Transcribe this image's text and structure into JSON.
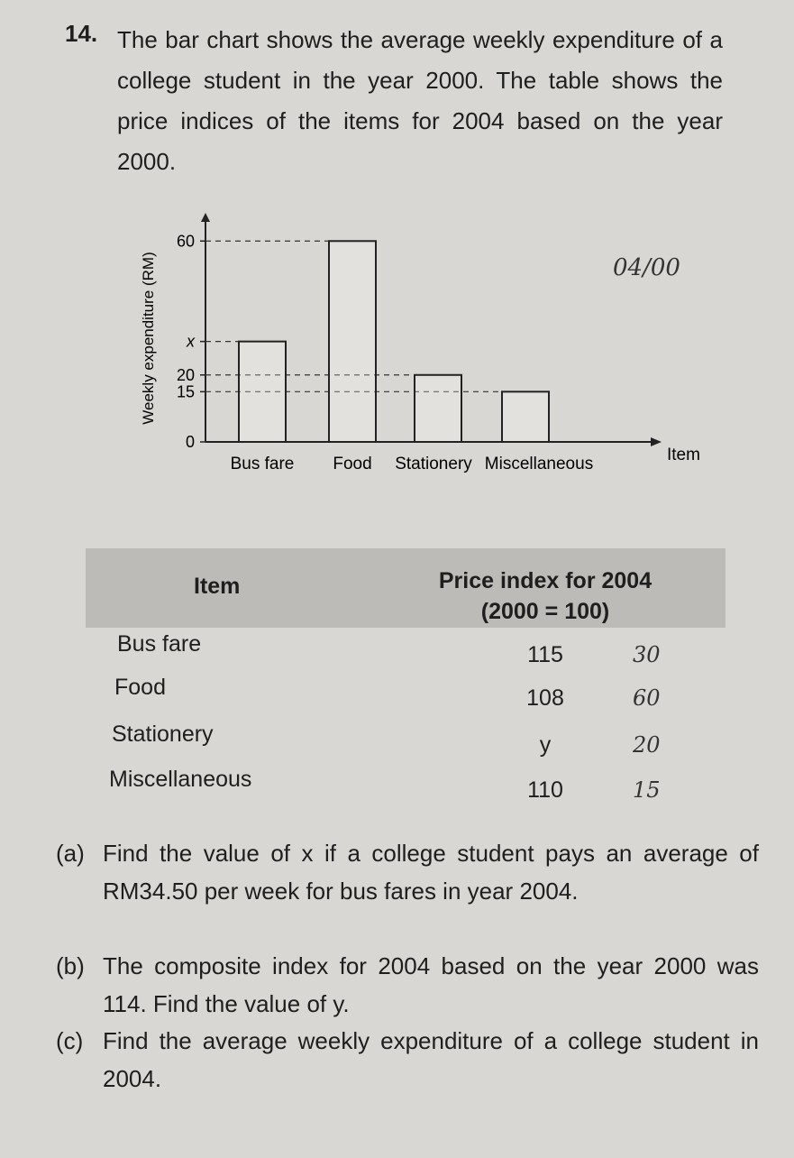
{
  "question": {
    "number": "14.",
    "text": "The bar chart shows the average weekly expenditure of a college student in the year 2000. The table shows the price indices of the items for 2004 based on the year 2000."
  },
  "chart_data": {
    "type": "bar",
    "ylabel": "Weekly expenditure (RM)",
    "xlabel": "Item",
    "categories": [
      "Bus fare",
      "Food",
      "Stationery",
      "Miscellaneous"
    ],
    "values": [
      30,
      60,
      20,
      15
    ],
    "color": "#ffffff",
    "ylim": [
      0,
      66
    ],
    "yticks": [
      0,
      15,
      20,
      {
        "value": 30,
        "label": "x"
      },
      60
    ]
  },
  "table": {
    "header": [
      "Item",
      "Price index for 2004",
      "(2000 = 100)"
    ],
    "rows": [
      [
        "Bus fare",
        115
      ],
      [
        "Food",
        108
      ],
      [
        "Stationery",
        "y"
      ],
      [
        "Miscellaneous",
        110
      ]
    ],
    "handwritten": [
      "30",
      "60",
      "20",
      "15"
    ]
  },
  "handwritten_note": "04/00",
  "parts": [
    {
      "label": "(a)",
      "text": "Find the value of x if a college student pays an average of RM34.50 per week for bus fares in year 2004."
    },
    {
      "label": "(b)",
      "text": "The composite index for 2004 based on the year 2000 was 114. Find the value of y."
    },
    {
      "label": "(c)",
      "text": "Find the average weekly expenditure of a college student in 2004."
    }
  ]
}
